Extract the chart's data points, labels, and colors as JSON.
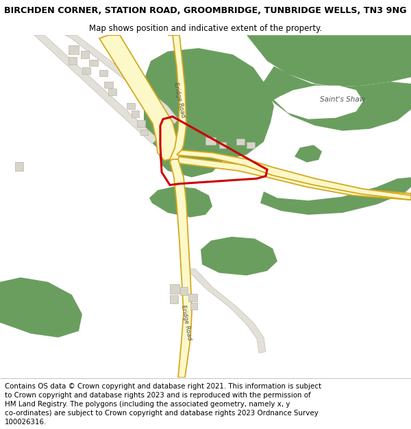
{
  "title_line1": "BIRCHDEN CORNER, STATION ROAD, GROOMBRIDGE, TUNBRIDGE WELLS, TN3 9NG",
  "title_line2": "Map shows position and indicative extent of the property.",
  "footer_lines": [
    "Contains OS data © Crown copyright and database right 2021. This information is subject",
    "to Crown copyright and database rights 2023 and is reproduced with the permission of",
    "HM Land Registry. The polygons (including the associated geometry, namely x, y",
    "co-ordinates) are subject to Crown copyright and database rights 2023 Ordnance Survey",
    "100026316."
  ],
  "map_bg": "#f5f5f2",
  "road_fill": "#fdf8c8",
  "road_outline": "#d4a820",
  "green_color": "#6a9e5e",
  "building_color": "#d8d4ca",
  "building_outline": "#b8b4aa",
  "grey_road_fill": "#e2e0d8",
  "grey_road_outline": "#c8c6be",
  "red_plot": "#cc0000",
  "title_fontsize": 9.2,
  "subtitle_fontsize": 8.5,
  "footer_fontsize": 7.4,
  "map_label_fontsize": 7.5,
  "road_label_fontsize": 6.2,
  "title_bold": true
}
